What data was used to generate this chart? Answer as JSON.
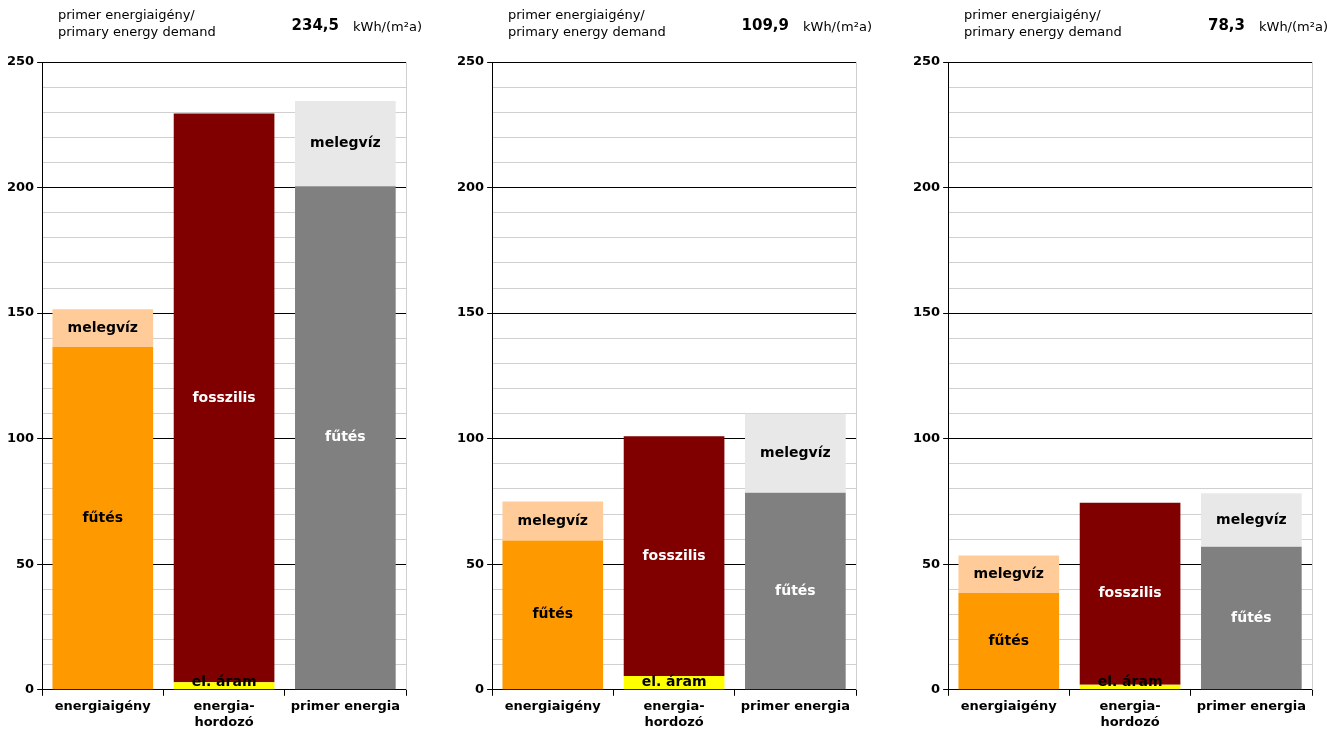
{
  "chart_data": [
    {
      "type": "bar",
      "title": "primer energiaigény/\nprimary energy demand",
      "annotations": [
        "234,5",
        "kWh/(m²a)"
      ],
      "categories": [
        "energiaigény",
        "energia-\nhordozó",
        "primer energia"
      ],
      "stacked": true,
      "grid": "y",
      "legend": false,
      "ylim": [
        0,
        250
      ],
      "yticks": [
        0,
        {
          "value": 10,
          "label": null
        },
        {
          "value": 20,
          "label": null
        },
        {
          "value": 30,
          "label": null
        },
        {
          "value": 40,
          "label": null
        },
        50,
        {
          "value": 60,
          "label": null
        },
        {
          "value": 70,
          "label": null
        },
        {
          "value": 80,
          "label": null
        },
        {
          "value": 90,
          "label": null
        },
        100,
        {
          "value": 110,
          "label": null
        },
        {
          "value": 120,
          "label": null
        },
        {
          "value": 130,
          "label": null
        },
        {
          "value": 140,
          "label": null
        },
        150,
        {
          "value": 160,
          "label": null
        },
        {
          "value": 170,
          "label": null
        },
        {
          "value": 180,
          "label": null
        },
        {
          "value": 190,
          "label": null
        },
        200,
        {
          "value": 210,
          "label": null
        },
        {
          "value": 220,
          "label": null
        },
        {
          "value": 230,
          "label": null
        },
        {
          "value": 240,
          "label": null
        },
        250
      ],
      "series": [
        {
          "name": "fűtés",
          "colors": [
            "#ff9900",
            null,
            "#808080"
          ],
          "values": [
            136.5,
            null,
            200.5
          ]
        },
        {
          "name": "el. áram",
          "colors": [
            null,
            "#ffff00",
            null
          ],
          "values": [
            null,
            3,
            null
          ]
        },
        {
          "name": "melegvíz",
          "colors": [
            "#ffcc99",
            null,
            "#e8e8e8"
          ],
          "values": [
            15,
            null,
            34
          ]
        },
        {
          "name": "fosszilis",
          "colors": [
            null,
            "#800000",
            null
          ],
          "values": [
            null,
            226.5,
            null
          ]
        }
      ]
    },
    {
      "type": "bar",
      "title": "primer energiaigény/\nprimary energy demand",
      "annotations": [
        "109,9",
        "kWh/(m²a)"
      ],
      "categories": [
        "energiaigény",
        "energia-\nhordozó",
        "primer energia"
      ],
      "stacked": true,
      "grid": "y",
      "legend": false,
      "ylim": [
        0,
        250
      ],
      "yticks": [
        0,
        {
          "value": 10,
          "label": null
        },
        {
          "value": 20,
          "label": null
        },
        {
          "value": 30,
          "label": null
        },
        {
          "value": 40,
          "label": null
        },
        50,
        {
          "value": 60,
          "label": null
        },
        {
          "value": 70,
          "label": null
        },
        {
          "value": 80,
          "label": null
        },
        {
          "value": 90,
          "label": null
        },
        100,
        {
          "value": 110,
          "label": null
        },
        {
          "value": 120,
          "label": null
        },
        {
          "value": 130,
          "label": null
        },
        {
          "value": 140,
          "label": null
        },
        150,
        {
          "value": 160,
          "label": null
        },
        {
          "value": 170,
          "label": null
        },
        {
          "value": 180,
          "label": null
        },
        {
          "value": 190,
          "label": null
        },
        200,
        {
          "value": 210,
          "label": null
        },
        {
          "value": 220,
          "label": null
        },
        {
          "value": 230,
          "label": null
        },
        {
          "value": 240,
          "label": null
        },
        250
      ],
      "series": [
        {
          "name": "fűtés",
          "colors": [
            "#ff9900",
            null,
            "#808080"
          ],
          "values": [
            59.5,
            null,
            78.5
          ]
        },
        {
          "name": "el. áram",
          "colors": [
            null,
            "#ffff00",
            null
          ],
          "values": [
            null,
            5.5,
            null
          ]
        },
        {
          "name": "melegvíz",
          "colors": [
            "#ffcc99",
            null,
            "#e8e8e8"
          ],
          "values": [
            15.5,
            null,
            31.4
          ]
        },
        {
          "name": "fosszilis",
          "colors": [
            null,
            "#800000",
            null
          ],
          "values": [
            null,
            95.5,
            null
          ]
        }
      ]
    },
    {
      "type": "bar",
      "title": "primer energiaigény/\nprimary energy demand",
      "annotations": [
        "78,3",
        "kWh/(m²a)"
      ],
      "categories": [
        "energiaigény",
        "energia-\nhordozó",
        "primer energia"
      ],
      "stacked": true,
      "grid": "y",
      "legend": false,
      "ylim": [
        0,
        250
      ],
      "yticks": [
        0,
        {
          "value": 10,
          "label": null
        },
        {
          "value": 20,
          "label": null
        },
        {
          "value": 30,
          "label": null
        },
        {
          "value": 40,
          "label": null
        },
        50,
        {
          "value": 60,
          "label": null
        },
        {
          "value": 70,
          "label": null
        },
        {
          "value": 80,
          "label": null
        },
        {
          "value": 90,
          "label": null
        },
        100,
        {
          "value": 110,
          "label": null
        },
        {
          "value": 120,
          "label": null
        },
        {
          "value": 130,
          "label": null
        },
        {
          "value": 140,
          "label": null
        },
        150,
        {
          "value": 160,
          "label": null
        },
        {
          "value": 170,
          "label": null
        },
        {
          "value": 180,
          "label": null
        },
        {
          "value": 190,
          "label": null
        },
        200,
        {
          "value": 210,
          "label": null
        },
        {
          "value": 220,
          "label": null
        },
        {
          "value": 230,
          "label": null
        },
        {
          "value": 240,
          "label": null
        },
        250
      ],
      "series": [
        {
          "name": "fűtés",
          "colors": [
            "#ff9900",
            null,
            "#808080"
          ],
          "values": [
            38.5,
            null,
            57
          ]
        },
        {
          "name": "el. áram",
          "colors": [
            null,
            "#ffff00",
            null
          ],
          "values": [
            null,
            2,
            null
          ]
        },
        {
          "name": "melegvíz",
          "colors": [
            "#ffcc99",
            null,
            "#e8e8e8"
          ],
          "values": [
            15,
            null,
            21.3
          ]
        },
        {
          "name": "fosszilis",
          "colors": [
            null,
            "#800000",
            null
          ],
          "values": [
            null,
            72.5,
            null
          ]
        }
      ]
    }
  ]
}
